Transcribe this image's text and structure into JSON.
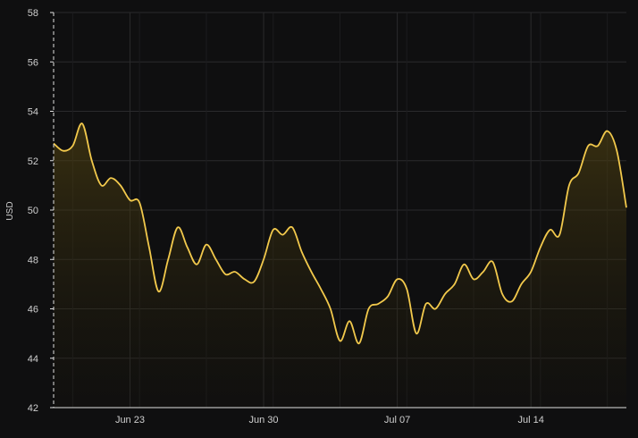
{
  "chart_data": {
    "type": "area",
    "title": "",
    "xlabel": "",
    "ylabel": "USD",
    "ylim": [
      42,
      58
    ],
    "yticks": [
      "42",
      "44",
      "46",
      "48",
      "50",
      "52",
      "54",
      "56",
      "58"
    ],
    "xticks": [
      {
        "label": "Jun 23",
        "date": "2024-06-23"
      },
      {
        "label": "Jun 30",
        "date": "2024-06-30"
      },
      {
        "label": "Jul 07",
        "date": "2024-07-07"
      },
      {
        "label": "Jul 14",
        "date": "2024-07-14"
      }
    ],
    "x_range": [
      "2024-06-19",
      "2024-07-19"
    ],
    "grid": true,
    "legend": "none",
    "colors": {
      "line": "#f2c94c",
      "fill_top": "#5a4a12",
      "fill_bottom": "#1a1608",
      "background": "#0f0f10",
      "grid": "#2a2a2c",
      "text": "#cfcfcf"
    },
    "series": [
      {
        "x": [
          "2024-06-19 00:00",
          "2024-06-19 12:00",
          "2024-06-20 00:00",
          "2024-06-20 12:00",
          "2024-06-21 00:00",
          "2024-06-21 12:00",
          "2024-06-22 00:00",
          "2024-06-22 12:00",
          "2024-06-23 00:00",
          "2024-06-23 12:00",
          "2024-06-24 00:00",
          "2024-06-24 12:00",
          "2024-06-25 00:00",
          "2024-06-25 12:00",
          "2024-06-26 00:00",
          "2024-06-26 12:00",
          "2024-06-27 00:00",
          "2024-06-27 12:00",
          "2024-06-28 00:00",
          "2024-06-28 12:00",
          "2024-06-29 00:00",
          "2024-06-29 12:00",
          "2024-06-30 00:00",
          "2024-06-30 12:00",
          "2024-07-01 00:00",
          "2024-07-01 12:00",
          "2024-07-02 00:00",
          "2024-07-02 12:00",
          "2024-07-03 00:00",
          "2024-07-03 12:00",
          "2024-07-04 00:00",
          "2024-07-04 12:00",
          "2024-07-05 00:00",
          "2024-07-05 12:00",
          "2024-07-06 00:00",
          "2024-07-06 12:00",
          "2024-07-07 00:00",
          "2024-07-07 12:00",
          "2024-07-08 00:00",
          "2024-07-08 12:00",
          "2024-07-09 00:00",
          "2024-07-09 12:00",
          "2024-07-10 00:00",
          "2024-07-10 12:00",
          "2024-07-11 00:00",
          "2024-07-11 12:00",
          "2024-07-12 00:00",
          "2024-07-12 12:00",
          "2024-07-13 00:00",
          "2024-07-13 12:00",
          "2024-07-14 00:00",
          "2024-07-14 12:00",
          "2024-07-15 00:00",
          "2024-07-15 12:00",
          "2024-07-16 00:00",
          "2024-07-16 12:00",
          "2024-07-17 00:00",
          "2024-07-17 12:00",
          "2024-07-18 00:00",
          "2024-07-18 12:00",
          "2024-07-19 00:00"
        ],
        "values": [
          52.7,
          52.4,
          52.6,
          53.5,
          52.0,
          51.0,
          51.3,
          51.0,
          50.4,
          50.3,
          48.5,
          46.7,
          48.0,
          49.3,
          48.5,
          47.8,
          48.6,
          48.0,
          47.4,
          47.5,
          47.2,
          47.1,
          48.0,
          49.2,
          49.0,
          49.3,
          48.3,
          47.5,
          46.8,
          46.0,
          44.7,
          45.5,
          44.6,
          46.0,
          46.2,
          46.5,
          47.2,
          46.8,
          45.0,
          46.2,
          46.0,
          46.6,
          47.0,
          47.8,
          47.2,
          47.5,
          47.9,
          46.6,
          46.3,
          47.0,
          47.5,
          48.5,
          49.2,
          49.0,
          51.0,
          51.5,
          52.6,
          52.6,
          53.2,
          52.4,
          50.1
        ]
      }
    ]
  }
}
